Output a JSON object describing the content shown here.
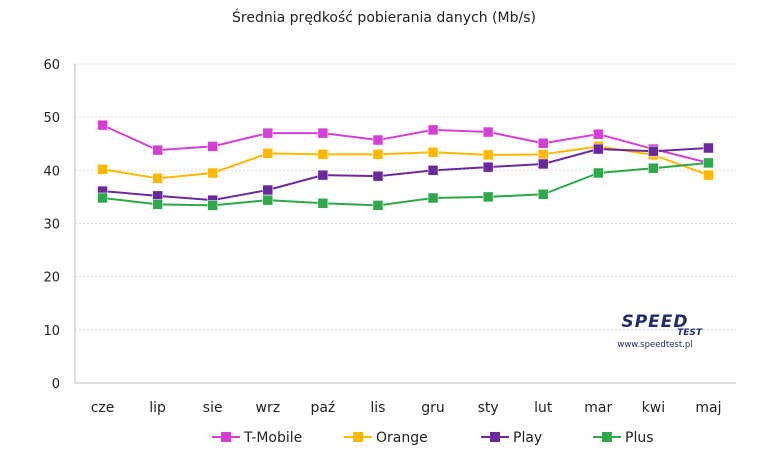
{
  "chart_data": {
    "type": "line",
    "title": "Średnia prędkość pobierania danych (Mb/s)",
    "categories": [
      "cze",
      "lip",
      "sie",
      "wrz",
      "paź",
      "lis",
      "gru",
      "sty",
      "lut",
      "mar",
      "kwi",
      "maj"
    ],
    "ylim": [
      0,
      60
    ],
    "yticks": [
      0,
      10,
      20,
      30,
      40,
      50,
      60
    ],
    "grid": true,
    "legend_position": "bottom",
    "series": [
      {
        "name": "T-Mobile",
        "color": "#d63fd6",
        "values": [
          48.5,
          43.8,
          44.5,
          47.0,
          47.0,
          45.7,
          47.6,
          47.2,
          45.1,
          46.8,
          44.0,
          41.4
        ]
      },
      {
        "name": "Orange",
        "color": "#ffb800",
        "values": [
          40.2,
          38.5,
          39.5,
          43.2,
          43.0,
          43.0,
          43.4,
          42.9,
          43.0,
          44.5,
          42.9,
          39.1
        ]
      },
      {
        "name": "Play",
        "color": "#6a2a9e",
        "values": [
          36.1,
          35.2,
          34.4,
          36.3,
          39.1,
          38.9,
          40.0,
          40.6,
          41.2,
          44.0,
          43.6,
          44.2
        ]
      },
      {
        "name": "Plus",
        "color": "#2ea84a",
        "values": [
          34.8,
          33.6,
          33.4,
          34.4,
          33.8,
          33.4,
          34.8,
          35.0,
          35.5,
          39.5,
          40.4,
          41.4
        ]
      }
    ]
  },
  "logo": {
    "word": "SPEED",
    "sub": "TEST",
    "url": "www.speedtest.pl"
  }
}
